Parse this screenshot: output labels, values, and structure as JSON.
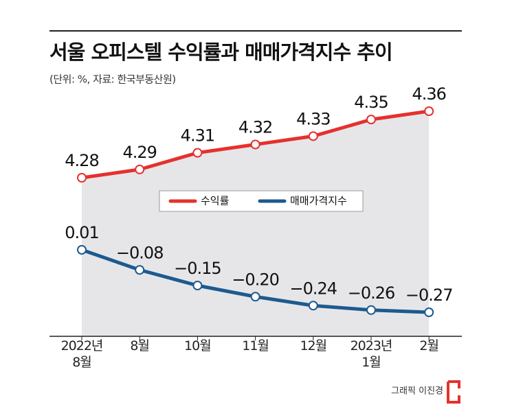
{
  "chart_data": {
    "type": "line",
    "title": "서울 오피스텔 수익률과 매매가격지수 추이",
    "subtitle": "(단위: %, 자료: 한국부동산원)",
    "credit": "그래픽 이진경",
    "categories": [
      "2022년\n8월",
      "8월",
      "10월",
      "11월",
      "12월",
      "2023년\n1월",
      "2월"
    ],
    "series": [
      {
        "name": "수익률",
        "color": "#e5312d",
        "values": [
          4.28,
          4.29,
          4.31,
          4.32,
          4.33,
          4.35,
          4.36
        ],
        "value_labels": [
          "4.28",
          "4.29",
          "4.31",
          "4.32",
          "4.33",
          "4.35",
          "4.36"
        ]
      },
      {
        "name": "매매가격지수",
        "color": "#1d5a8e",
        "values": [
          0.01,
          -0.08,
          -0.15,
          -0.2,
          -0.24,
          -0.26,
          -0.27
        ],
        "value_labels": [
          "0.01",
          "−0.08",
          "−0.15",
          "−0.20",
          "−0.24",
          "−0.26",
          "−0.27"
        ]
      }
    ]
  }
}
